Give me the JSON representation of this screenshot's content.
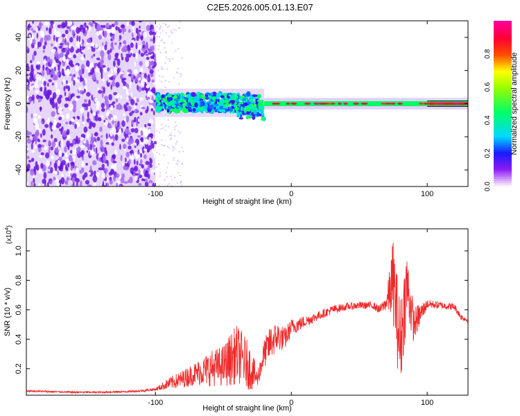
{
  "title": "C2E5.2026.005.01.13.E07",
  "colors": {
    "background": "#ffffff",
    "snr_line": "#ee2b2b",
    "spectrogram_noise": "#7a1fe0",
    "frame": "#000000"
  },
  "chart_data": [
    {
      "type": "heatmap",
      "name": "spectrogram",
      "xlabel": "Height of straight line (km)",
      "ylabel": "Frequency (Hz)",
      "xlim": [
        -195,
        130
      ],
      "ylim": [
        -50,
        50
      ],
      "xticks": [
        {
          "value": -100,
          "label": "-100"
        },
        {
          "value": 0,
          "label": "0"
        },
        {
          "value": 100,
          "label": "100"
        }
      ],
      "yticks": [
        {
          "value": -40,
          "label": "-40"
        },
        {
          "value": -20,
          "label": "-20"
        },
        {
          "value": 0,
          "label": "0"
        },
        {
          "value": 20,
          "label": "20"
        },
        {
          "value": 40,
          "label": "40"
        }
      ],
      "regions": [
        {
          "x_from": -195,
          "x_to": -100,
          "y_from": -50,
          "y_to": 50,
          "level": 0.15,
          "kind": "broadband-noise"
        },
        {
          "x_from": -100,
          "x_to": -20,
          "y_from": -5,
          "y_to": 6,
          "level": 0.3,
          "kind": "scattered-band"
        },
        {
          "x_from": -20,
          "x_to": 130,
          "y_from": -1.5,
          "y_to": 1.5,
          "level": 0.9,
          "kind": "narrow-line"
        }
      ],
      "colorbar": {
        "label": "Normalized spectral amplitude",
        "range": [
          0,
          1
        ],
        "ticks": [
          {
            "value": 0.0,
            "label": "0.0"
          },
          {
            "value": 0.2,
            "label": "0.2"
          },
          {
            "value": 0.4,
            "label": "0.4"
          },
          {
            "value": 0.6,
            "label": "0.6"
          },
          {
            "value": 0.8,
            "label": "0.8"
          }
        ]
      }
    },
    {
      "type": "line",
      "name": "snr",
      "xlabel": "Height of straight line (km)",
      "ylabel": "SNR (10 * v/v)",
      "yscale_label": "(x10",
      "yscale_exp": "4",
      "yscale_close": ")",
      "xlim": [
        -195,
        130
      ],
      "ylim": [
        0.02,
        1.15
      ],
      "xticks": [
        {
          "value": -100,
          "label": "-100"
        },
        {
          "value": 0,
          "label": "0"
        },
        {
          "value": 100,
          "label": "100"
        }
      ],
      "yticks": [
        {
          "value": 0.2,
          "label": "0.2"
        },
        {
          "value": 0.4,
          "label": "0.4"
        },
        {
          "value": 0.6,
          "label": "0.6"
        },
        {
          "value": 0.8,
          "label": "0.8"
        },
        {
          "value": 1.0,
          "label": "1.0"
        }
      ],
      "series": [
        {
          "name": "SNR",
          "x": [
            -195,
            -180,
            -160,
            -140,
            -120,
            -110,
            -100,
            -90,
            -80,
            -70,
            -60,
            -50,
            -45,
            -40,
            -35,
            -30,
            -25,
            -20,
            -15,
            -10,
            -5,
            0,
            5,
            10,
            20,
            30,
            40,
            50,
            60,
            65,
            70,
            75,
            80,
            85,
            90,
            100,
            110,
            120,
            125,
            130
          ],
          "values": [
            0.05,
            0.045,
            0.04,
            0.04,
            0.045,
            0.05,
            0.06,
            0.1,
            0.13,
            0.17,
            0.2,
            0.22,
            0.26,
            0.3,
            0.26,
            0.2,
            0.13,
            0.3,
            0.38,
            0.42,
            0.4,
            0.48,
            0.5,
            0.52,
            0.56,
            0.6,
            0.62,
            0.63,
            0.63,
            0.6,
            0.65,
            0.8,
            0.35,
            0.78,
            0.5,
            0.64,
            0.63,
            0.62,
            0.55,
            0.53
          ],
          "volatility": [
            0.006,
            0.006,
            0.006,
            0.006,
            0.006,
            0.008,
            0.01,
            0.04,
            0.06,
            0.08,
            0.12,
            0.14,
            0.18,
            0.2,
            0.18,
            0.15,
            0.06,
            0.1,
            0.12,
            0.1,
            0.08,
            0.06,
            0.05,
            0.04,
            0.03,
            0.03,
            0.025,
            0.025,
            0.025,
            0.03,
            0.05,
            0.3,
            0.32,
            0.25,
            0.12,
            0.03,
            0.025,
            0.025,
            0.02,
            0.02
          ]
        }
      ]
    }
  ]
}
